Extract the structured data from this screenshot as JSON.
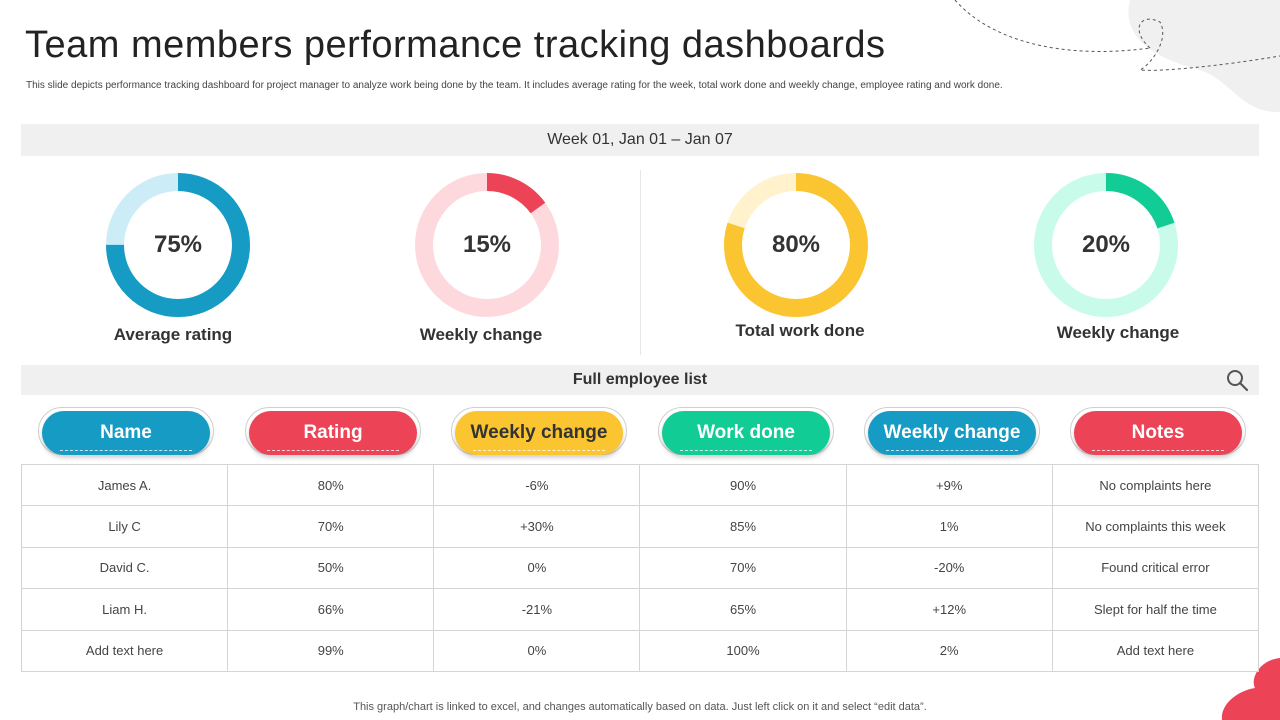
{
  "header": {
    "title": "Team members performance tracking dashboards",
    "subtitle": "This slide depicts performance tracking dashboard for project manager to analyze work being done by the team. It includes average rating for the week, total work done and weekly change, employee rating and work done."
  },
  "week_label": "Week 01, Jan 01 – Jan 07",
  "gauges": [
    {
      "value_label": "75%",
      "value": 75,
      "label": "Average rating",
      "color": "#159bc4",
      "track": "#ccedf8"
    },
    {
      "value_label": "15%",
      "value": 15,
      "label": "Weekly change",
      "color": "#ec4356",
      "track": "#fdd9de"
    },
    {
      "value_label": "80%",
      "value": 80,
      "label": "Total work done",
      "color": "#fbc531",
      "track": "#fff2cc"
    },
    {
      "value_label": "20%",
      "value": 20,
      "label": "Weekly change",
      "color": "#12cc95",
      "track": "#c9fbeb"
    }
  ],
  "employee_list": {
    "title": "Full employee list",
    "search_icon": "search-icon",
    "columns": [
      {
        "label": "Name",
        "color": "#159bc4"
      },
      {
        "label": "Rating",
        "color": "#ec4356"
      },
      {
        "label": "Weekly change",
        "color": "#fbc531"
      },
      {
        "label": "Work done",
        "color": "#12cc95"
      },
      {
        "label": "Weekly change",
        "color": "#159bc4"
      },
      {
        "label": "Notes",
        "color": "#ec4356"
      }
    ],
    "rows": [
      [
        "James A.",
        "80%",
        "-6%",
        "90%",
        "+9%",
        "No complaints here"
      ],
      [
        "Lily C",
        "70%",
        "+30%",
        "85%",
        "1%",
        "No complaints this week"
      ],
      [
        "David  C.",
        "50%",
        "0%",
        "70%",
        "-20%",
        "Found critical error"
      ],
      [
        "Liam H.",
        "66%",
        "-21%",
        "65%",
        "+12%",
        "Slept for half the time"
      ],
      [
        "Add text here",
        "99%",
        "0%",
        "100%",
        "2%",
        "Add text here"
      ]
    ]
  },
  "footer": "This graph/chart is linked to excel, and changes automatically based on data. Just left click on it and select “edit data”."
}
